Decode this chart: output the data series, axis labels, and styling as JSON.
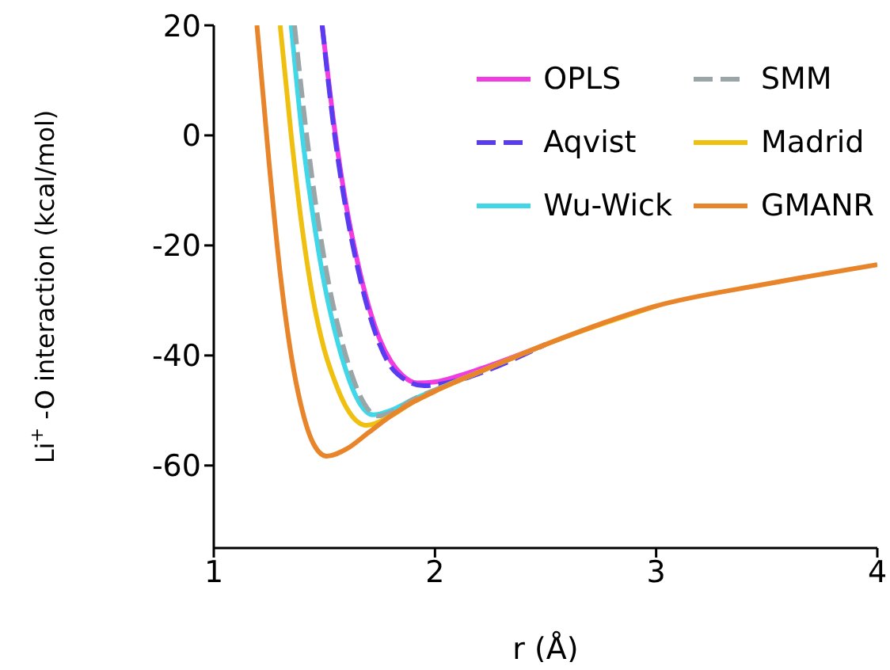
{
  "chart_data": {
    "type": "line",
    "xlabel": "r (Å)",
    "ylabel": "Li$^{+}$-O interaction (kcal/mol)",
    "xlim": [
      1,
      4
    ],
    "ylim": [
      -75,
      20
    ],
    "xticks": [
      1,
      2,
      3,
      4
    ],
    "yticks": [
      -60,
      -40,
      -20,
      0,
      20
    ],
    "grid": false,
    "legend": "top right",
    "marker": "none",
    "series": [
      {
        "name": "OPLS",
        "color": "#f03ce0",
        "line_style": "solid",
        "x": [
          1.49,
          1.55,
          1.6,
          1.65,
          1.7,
          1.75,
          1.8,
          1.85,
          1.92,
          2.0,
          2.1,
          2.2,
          2.5
        ],
        "values": [
          20,
          0,
          -13,
          -23,
          -31,
          -37,
          -41,
          -43.5,
          -45,
          -44.8,
          -43.8,
          -42.5,
          -38
        ]
      },
      {
        "name": "Aqvist",
        "color": "#5a3cf0",
        "line_style": "dashed",
        "x": [
          1.49,
          1.55,
          1.6,
          1.65,
          1.7,
          1.75,
          1.8,
          1.85,
          1.95,
          2.05,
          2.15,
          2.25,
          2.5
        ],
        "values": [
          20,
          -1,
          -14,
          -24,
          -32,
          -38,
          -42,
          -44,
          -45.5,
          -45,
          -44,
          -42.5,
          -38
        ]
      },
      {
        "name": "Wu-Wick",
        "color": "#40d8e8",
        "line_style": "solid",
        "x": [
          1.35,
          1.4,
          1.45,
          1.5,
          1.55,
          1.6,
          1.65,
          1.72,
          1.8,
          1.9,
          2.0,
          2.2
        ],
        "values": [
          20,
          0,
          -15,
          -27,
          -36,
          -43,
          -48,
          -50.8,
          -50,
          -48,
          -46.3,
          -43
        ]
      },
      {
        "name": "SMM",
        "color": "#9aa5a8",
        "line_style": "dashed",
        "x": [
          1.365,
          1.42,
          1.47,
          1.52,
          1.57,
          1.62,
          1.67,
          1.74,
          1.82,
          1.9,
          2.0,
          2.2,
          2.5
        ],
        "values": [
          20,
          0,
          -15,
          -27,
          -36,
          -43,
          -48,
          -51,
          -50,
          -48,
          -46.3,
          -43,
          -38
        ]
      },
      {
        "name": "Madrid",
        "color": "#f0c010",
        "line_style": "solid",
        "x": [
          1.3,
          1.35,
          1.4,
          1.45,
          1.5,
          1.55,
          1.6,
          1.69,
          1.8,
          1.9,
          2.0,
          2.2,
          2.5,
          3.0
        ],
        "values": [
          20,
          0,
          -17,
          -30,
          -39,
          -45,
          -49.5,
          -52.7,
          -51,
          -48.5,
          -46.5,
          -43,
          -38,
          -31
        ]
      },
      {
        "name": "GMANR",
        "color": "#e8842a",
        "line_style": "solid",
        "x": [
          1.195,
          1.25,
          1.3,
          1.35,
          1.4,
          1.45,
          1.51,
          1.6,
          1.7,
          1.8,
          1.9,
          2.0,
          2.2,
          2.5,
          3.0,
          3.5,
          4.0
        ],
        "values": [
          20,
          -5,
          -25,
          -40,
          -50,
          -56,
          -58.3,
          -57,
          -54,
          -51,
          -48.5,
          -46.5,
          -43,
          -38,
          -31,
          -27,
          -23.5
        ]
      }
    ]
  }
}
